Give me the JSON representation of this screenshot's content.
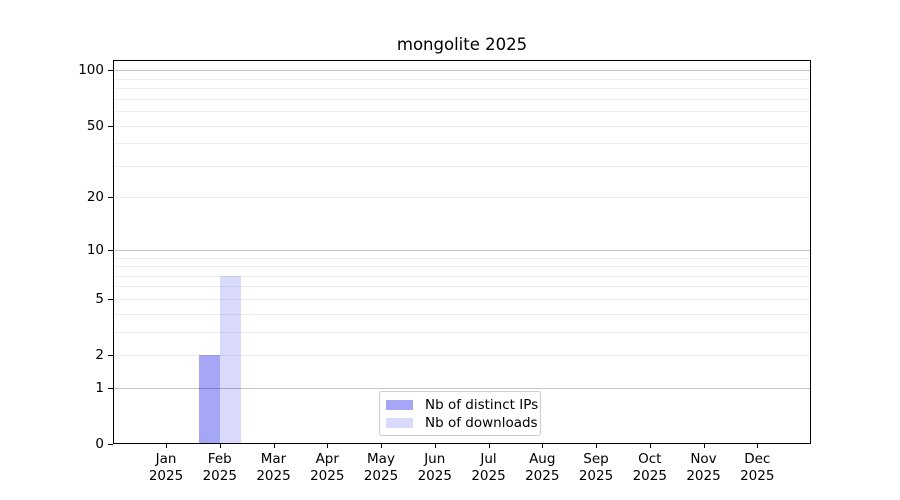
{
  "chart_data": {
    "type": "bar",
    "title": "mongolite 2025",
    "categories": [
      "Jan 2025",
      "Feb 2025",
      "Mar 2025",
      "Apr 2025",
      "May 2025",
      "Jun 2025",
      "Jul 2025",
      "Aug 2025",
      "Sep 2025",
      "Oct 2025",
      "Nov 2025",
      "Dec 2025"
    ],
    "series": [
      {
        "name": "Nb of distinct IPs",
        "color": "rgba(0,0,230,0.35)",
        "values": [
          0,
          2,
          0,
          0,
          0,
          0,
          0,
          0,
          0,
          0,
          0,
          0
        ]
      },
      {
        "name": "Nb of downloads",
        "color": "rgba(0,0,230,0.15)",
        "values": [
          0,
          7,
          0,
          0,
          0,
          0,
          0,
          0,
          0,
          0,
          0,
          0
        ]
      }
    ],
    "xlabel": "",
    "ylabel": "",
    "y_scale": "log1p",
    "y_ticks": [
      0,
      1,
      2,
      5,
      10,
      20,
      50,
      100
    ],
    "y_major_gridlines": [
      1,
      10,
      100
    ],
    "y_minor_gridlines": [
      2,
      3,
      4,
      5,
      6,
      7,
      8,
      9,
      20,
      30,
      40,
      50,
      60,
      70,
      80,
      90
    ],
    "ylim": [
      0,
      112
    ],
    "grid": "horizontal",
    "legend_position": "lower center"
  },
  "colors": {
    "bar_distinct_ips_rendered": "#a8a8f7",
    "bar_downloads_rendered": "#dcdcfb",
    "grid_major": "#c4c4c4",
    "grid_minor": "#ededed",
    "axis": "#000000",
    "background": "#ffffff",
    "legend_border": "#cccccc",
    "text": "#000000"
  }
}
